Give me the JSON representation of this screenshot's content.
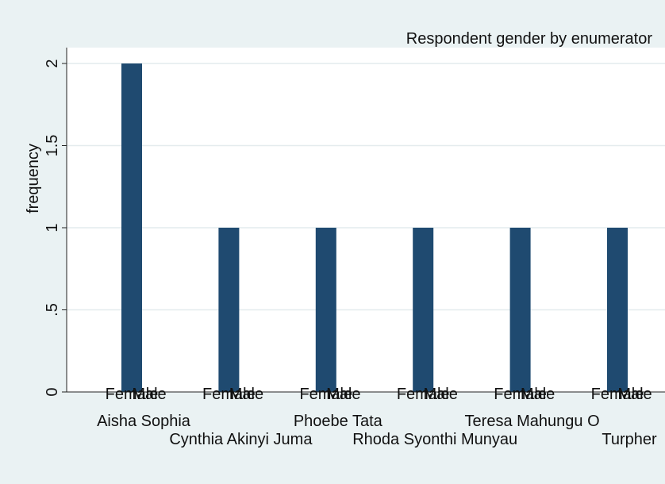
{
  "chart_data": {
    "type": "bar",
    "title": "Respondent gender by enumerator",
    "xlabel": "",
    "ylabel": "frequency",
    "ylim": [
      0,
      2
    ],
    "yticks": [
      {
        "value": 0,
        "label": "0"
      },
      {
        "value": 0.5,
        "label": ".5"
      },
      {
        "value": 1,
        "label": "1"
      },
      {
        "value": 1.5,
        "label": "1.5"
      },
      {
        "value": 2,
        "label": "2"
      }
    ],
    "grid": true,
    "bar_color": "#1f4a70",
    "background_color": "#eaf2f3",
    "plot_background_color": "#ffffff",
    "groups": [
      {
        "enumerator": "Aisha Sophia",
        "sub_labels": [
          "Female",
          "Male"
        ],
        "values": [
          2,
          0
        ]
      },
      {
        "enumerator": "Cynthia Akinyi Juma",
        "sub_labels": [
          "Female",
          "Male"
        ],
        "values": [
          1,
          0
        ]
      },
      {
        "enumerator": "Phoebe Tata",
        "sub_labels": [
          "Female",
          "Male"
        ],
        "values": [
          1,
          0
        ]
      },
      {
        "enumerator": "Rhoda Syonthi Munyau",
        "sub_labels": [
          "Female",
          "Male"
        ],
        "values": [
          1,
          0
        ]
      },
      {
        "enumerator": "Teresa Mahungu O",
        "sub_labels": [
          "Female",
          "Male"
        ],
        "values": [
          1,
          0
        ]
      },
      {
        "enumerator": "Turpher",
        "sub_labels": [
          "Female",
          "Male"
        ],
        "values": [
          1,
          0
        ]
      }
    ]
  }
}
